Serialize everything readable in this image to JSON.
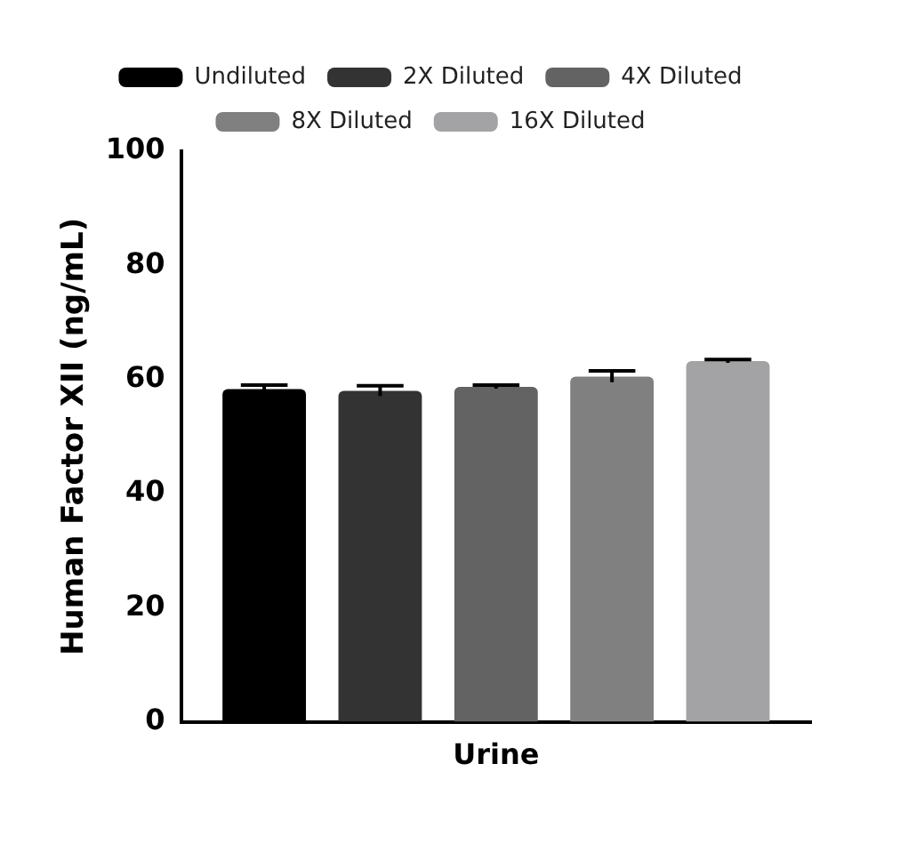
{
  "chart_data": {
    "type": "bar",
    "ylabel": "Human Factor XII (ng/mL)",
    "xlabel": "Urine",
    "categories": [
      null
    ],
    "series": [
      {
        "name": "Undiluted",
        "color": "#000000",
        "values": [
          58.3
        ],
        "errors": [
          0.7
        ]
      },
      {
        "name": "2X Diluted",
        "color": "#333333",
        "values": [
          58.0
        ],
        "errors": [
          0.9
        ]
      },
      {
        "name": "4X Diluted",
        "color": "#636363",
        "values": [
          58.7
        ],
        "errors": [
          0.3
        ]
      },
      {
        "name": "8X Diluted",
        "color": "#808080",
        "values": [
          60.5
        ],
        "errors": [
          1.0
        ]
      },
      {
        "name": "16X Diluted",
        "color": "#a3a3a6",
        "values": [
          63.2
        ],
        "errors": [
          0.3
        ]
      }
    ],
    "ylim": [
      0,
      100
    ],
    "yticks": [
      0,
      20,
      40,
      60,
      80,
      100
    ],
    "grid": false,
    "legend": "top"
  }
}
